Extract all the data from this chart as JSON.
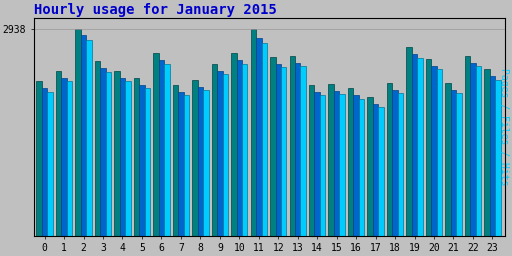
{
  "title": "Hourly usage for January 2015",
  "title_color": "#0000cc",
  "title_fontsize": 10,
  "ylabel_right": "Pages / Files / Hits",
  "hours": [
    0,
    1,
    2,
    3,
    4,
    5,
    6,
    7,
    8,
    9,
    10,
    11,
    12,
    13,
    14,
    15,
    16,
    17,
    18,
    19,
    20,
    21,
    22,
    23
  ],
  "pages": [
    2200,
    2350,
    2938,
    2480,
    2350,
    2250,
    2600,
    2150,
    2220,
    2450,
    2600,
    2938,
    2550,
    2560,
    2150,
    2160,
    2100,
    1980,
    2180,
    2680,
    2520,
    2180,
    2560,
    2370
  ],
  "files": [
    2100,
    2250,
    2850,
    2380,
    2250,
    2150,
    2500,
    2050,
    2120,
    2350,
    2500,
    2820,
    2450,
    2460,
    2050,
    2060,
    2000,
    1880,
    2080,
    2580,
    2420,
    2080,
    2460,
    2270
  ],
  "hits": [
    2050,
    2200,
    2780,
    2330,
    2200,
    2100,
    2450,
    2000,
    2070,
    2300,
    2450,
    2750,
    2400,
    2410,
    2000,
    2010,
    1950,
    1830,
    2030,
    2530,
    2370,
    2030,
    2410,
    2220
  ],
  "pages_color": "#008080",
  "files_color": "#0066cc",
  "hits_color": "#00ccff",
  "bg_color": "#c0c0c0",
  "plot_bg_color": "#c0c0c0",
  "ytick_label": "2938",
  "bar_width": 0.28,
  "ylim_max": 3100,
  "ylim_min": 1700,
  "figsize": [
    5.12,
    2.56
  ],
  "dpi": 100
}
